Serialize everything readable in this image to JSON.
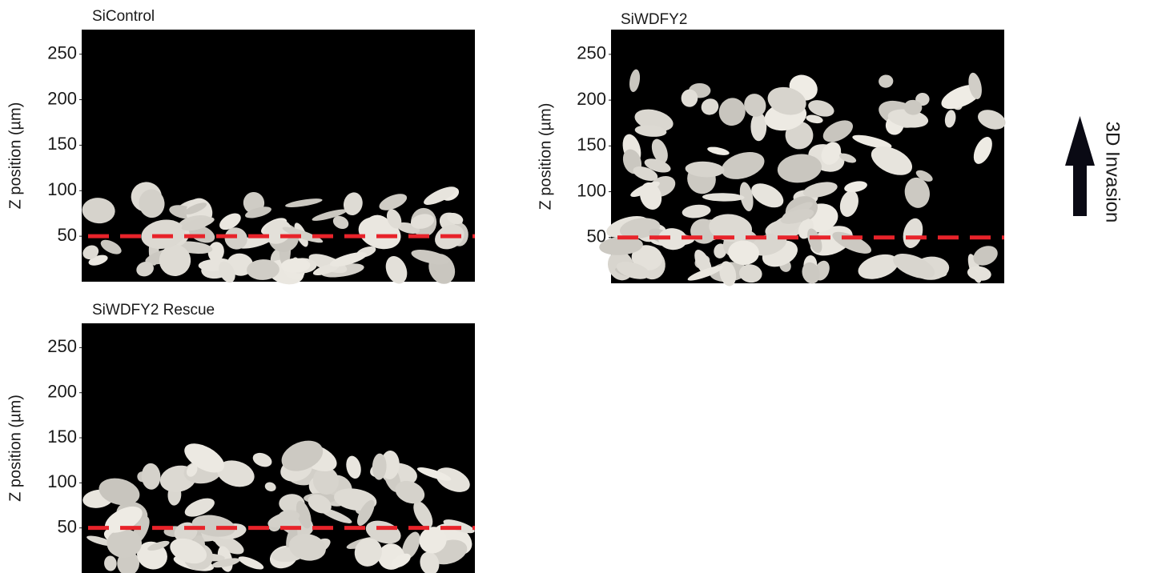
{
  "panels": [
    {
      "title": "SiControl",
      "ylabel": "Z position (µm)",
      "ylim": [
        0,
        277
      ],
      "yticks": [
        50,
        100,
        150,
        200,
        250
      ],
      "threshold": 50
    },
    {
      "title": "SiWDFY2",
      "ylabel": "Z position (µm)",
      "ylim": [
        0,
        277
      ],
      "yticks": [
        50,
        100,
        150,
        200,
        250
      ],
      "threshold": 50
    },
    {
      "title": "SiWDFY2 Rescue",
      "ylabel": "Z position (µm)",
      "ylim": [
        0,
        277
      ],
      "yticks": [
        50,
        100,
        150,
        200,
        250
      ],
      "threshold": 50
    }
  ],
  "side_label": "3D Invasion"
}
